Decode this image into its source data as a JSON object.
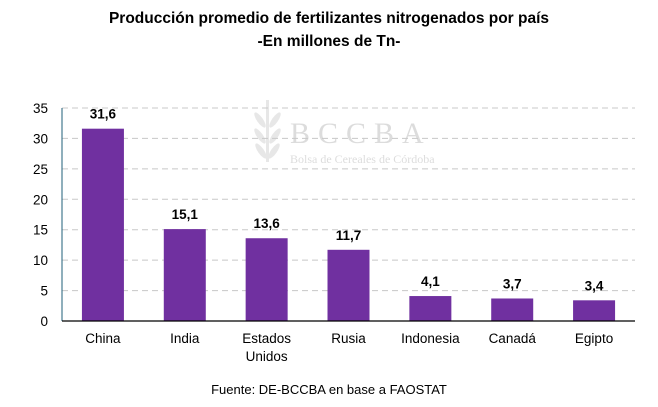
{
  "chart_data": {
    "type": "bar",
    "title": "Producción promedio de fertilizantes nitrogenados por país",
    "subtitle": "-En millones de Tn-",
    "categories": [
      [
        "China"
      ],
      [
        "India"
      ],
      [
        "Estados",
        "Unidos"
      ],
      [
        "Rusia"
      ],
      [
        "Indonesia"
      ],
      [
        "Canadá"
      ],
      [
        "Egipto"
      ]
    ],
    "values": [
      31.6,
      15.1,
      13.6,
      11.7,
      4.1,
      3.7,
      3.4
    ],
    "data_labels": [
      "31,6",
      "15,1",
      "13,6",
      "11,7",
      "4,1",
      "3,7",
      "3,4"
    ],
    "ylim": [
      0,
      35
    ],
    "yticks": [
      0,
      5,
      10,
      15,
      20,
      25,
      30,
      35
    ],
    "grid": "horizontal dashed",
    "bar_color": "#7030A0",
    "xlabel": "",
    "ylabel": "",
    "source": "Fuente: DE-BCCBA en base a FAOSTAT"
  },
  "watermark": {
    "logo": "BCCBA",
    "text": "Bolsa de Cereales de Córdoba"
  }
}
